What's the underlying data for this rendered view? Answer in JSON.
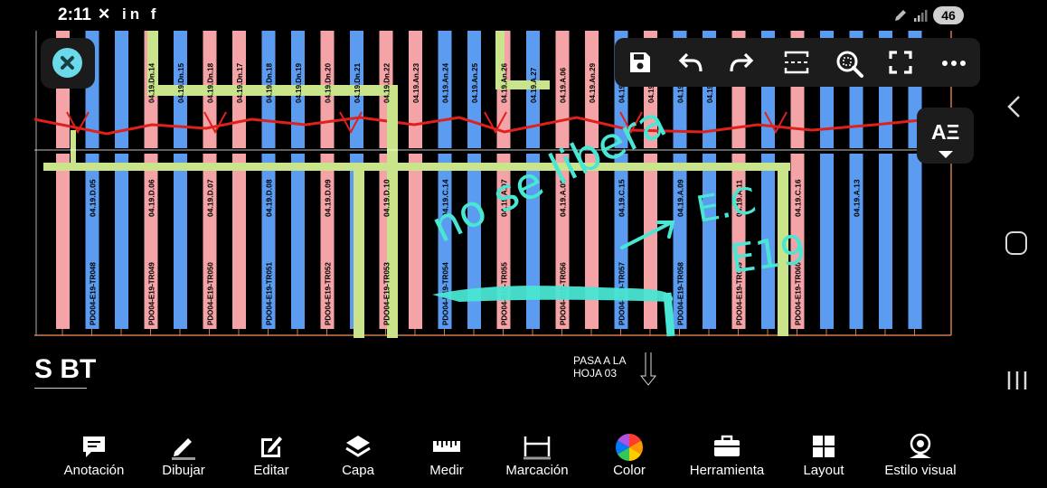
{
  "status_bar": {
    "time": "2:11",
    "app_icons": "✕ in f",
    "battery": "46"
  },
  "drawing": {
    "sheet_title": "S BT",
    "continuation_line1": "PASA A LA",
    "continuation_line2": "HOJA 03",
    "handwritten_annotation": [
      "no se libera",
      "E.C",
      "E19"
    ],
    "upper_labels": [
      "04.19.Dn.14",
      "04.19.Dn.15",
      "04.19.Dn.18",
      "04.19.Dn.17",
      "04.19.Dn.18",
      "04.19.Dn.19",
      "04.19.Dn.20",
      "04.19.Dn.21",
      "04.19.Dn.22",
      "04.19.An.23",
      "04.19.An.24",
      "04.19.An.25",
      "04.19.An.26",
      "04.19.A.27",
      "04.19.A.06",
      "04.19.An.29",
      "04.19.An.29",
      "04.19.An.30",
      "04.19.A.10",
      "04.19.A.12"
    ],
    "mid_labels": [
      "04.19.D.05",
      "04.19.D.06",
      "04.19.D.07",
      "04.19.D.08",
      "04.19.D.09",
      "04.19.D.10",
      "04.19.C.14",
      "04.19.A.07",
      "04.19.A.08",
      "04.19.C.15",
      "04.19.A.09",
      "04.19.A.11",
      "04.19.C.16",
      "04.19.A.13"
    ],
    "tr_labels": [
      "PDO04-E19-TR048",
      "PDO04-E19-TR049",
      "PDO04-E19-TR050",
      "PDO04-E19-TR051",
      "PDO04-E19-TR052",
      "PDO04-E19-TR053",
      "PDO04-E19-TR054",
      "PDO04-E19-TR055",
      "PDO04-E19-TR056",
      "PDO04-E19-TR057",
      "PDO04-E19-TR058",
      "PDO04-E19-TR059",
      "PDO04-E19-TR060"
    ],
    "colors": {
      "pink": "#f4a3a6",
      "blue": "#5b9cf0",
      "green": "#c9e48a",
      "red_line": "#e0201b",
      "annotation": "#49e6d3"
    }
  },
  "top_toolbar": {
    "buttons": [
      "save-icon",
      "undo-icon",
      "redo-icon",
      "fit-width-icon",
      "zoom-area-icon",
      "fullscreen-icon",
      "more-icon"
    ]
  },
  "text_style_button": {
    "label": "AΞ"
  },
  "bottom_toolbar": {
    "items": [
      {
        "label": "Anotación",
        "icon": "comment-icon"
      },
      {
        "label": "Dibujar",
        "icon": "pencil-icon"
      },
      {
        "label": "Editar",
        "icon": "edit-icon"
      },
      {
        "label": "Capa",
        "icon": "layers-icon"
      },
      {
        "label": "Medir",
        "icon": "ruler-icon"
      },
      {
        "label": "Marcación",
        "icon": "dimension-icon"
      },
      {
        "label": "Color",
        "icon": "color-wheel-icon"
      },
      {
        "label": "Herramienta",
        "icon": "toolbox-icon"
      },
      {
        "label": "Layout",
        "icon": "layout-icon"
      },
      {
        "label": "Estilo visual",
        "icon": "visual-style-icon"
      }
    ]
  }
}
